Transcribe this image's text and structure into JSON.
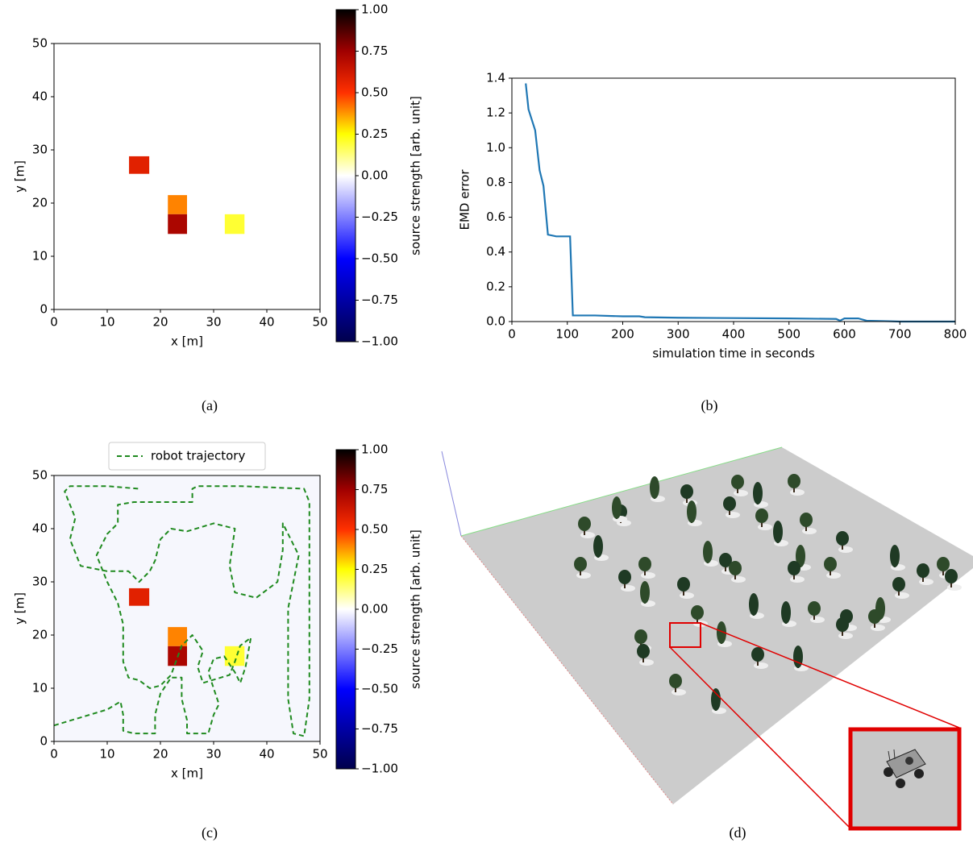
{
  "chart_data": [
    {
      "type": "heatmap",
      "caption": "(a)",
      "xlabel": "x [m]",
      "ylabel": "y [m]",
      "xlim": [
        0,
        50
      ],
      "ylim": [
        0,
        50
      ],
      "xticks": [
        0,
        10,
        20,
        30,
        40,
        50
      ],
      "yticks": [
        0,
        10,
        20,
        30,
        40,
        50
      ],
      "cells": [
        {
          "x": [
            14.1,
            17.9
          ],
          "y": [
            25.5,
            28.8
          ],
          "value": 0.58
        },
        {
          "x": [
            21.4,
            25
          ],
          "y": [
            17.9,
            21.5
          ],
          "value": 0.4
        },
        {
          "x": [
            21.4,
            25
          ],
          "y": [
            14.2,
            17.9
          ],
          "value": 0.72
        },
        {
          "x": [
            32.1,
            35.8
          ],
          "y": [
            14.2,
            17.9
          ],
          "value": 0.2
        }
      ],
      "colorbar": {
        "label": "source strength [arb. unit]",
        "lim": [
          -1,
          1
        ],
        "ticks": [
          {
            "value": 1,
            "label": "1.00"
          },
          {
            "value": 0.75,
            "label": "0.75"
          },
          {
            "value": 0.5,
            "label": "0.50"
          },
          {
            "value": 0.25,
            "label": "0.25"
          },
          {
            "value": 0,
            "label": "0.00"
          },
          {
            "value": -0.25,
            "label": "−0.25"
          },
          {
            "value": -0.5,
            "label": "−0.50"
          },
          {
            "value": -0.75,
            "label": "−0.75"
          },
          {
            "value": -1,
            "label": "−1.00"
          }
        ],
        "colormap": [
          {
            "value": -1,
            "color": "#00004c"
          },
          {
            "value": -0.5,
            "color": "#0000ff"
          },
          {
            "value": 0,
            "color": "#ffffff"
          },
          {
            "value": 0.25,
            "color": "#ffff00"
          },
          {
            "value": 0.5,
            "color": "#ff3000"
          },
          {
            "value": 0.75,
            "color": "#a00000"
          },
          {
            "value": 1,
            "color": "#000000"
          }
        ]
      }
    },
    {
      "type": "line",
      "caption": "(b)",
      "xlabel": "simulation time in seconds",
      "ylabel": "EMD error",
      "color": "#1f77b4",
      "xlim": [
        0,
        800
      ],
      "ylim": [
        0,
        1.4
      ],
      "xticks": [
        0,
        100,
        200,
        300,
        400,
        500,
        600,
        700,
        800
      ],
      "yticks": [
        {
          "value": 0,
          "label": "0.0"
        },
        {
          "value": 0.2,
          "label": "0.2"
        },
        {
          "value": 0.4,
          "label": "0.4"
        },
        {
          "value": 0.6,
          "label": "0.6"
        },
        {
          "value": 0.8,
          "label": "0.8"
        },
        {
          "value": 1,
          "label": "1.0"
        },
        {
          "value": 1.2,
          "label": "1.2"
        },
        {
          "value": 1.4,
          "label": "1.4"
        }
      ],
      "x": [
        25,
        30,
        42,
        50,
        57,
        65,
        80,
        95,
        105,
        110,
        150,
        200,
        230,
        240,
        300,
        400,
        500,
        585,
        592,
        600,
        625,
        640,
        680,
        700,
        800
      ],
      "values": [
        1.37,
        1.22,
        1.1,
        0.87,
        0.78,
        0.5,
        0.49,
        0.49,
        0.49,
        0.035,
        0.035,
        0.03,
        0.03,
        0.025,
        0.022,
        0.02,
        0.018,
        0.015,
        0.005,
        0.018,
        0.018,
        0.005,
        0.002,
        0,
        0
      ]
    },
    {
      "type": "heatmap",
      "caption": "(c)",
      "xlabel": "x [m]",
      "ylabel": "y [m]",
      "xlim": [
        0,
        50
      ],
      "ylim": [
        0,
        50
      ],
      "xticks": [
        0,
        10,
        20,
        30,
        40,
        50
      ],
      "yticks": [
        0,
        10,
        20,
        30,
        40,
        50
      ],
      "cells": [
        {
          "x": [
            14.1,
            17.9
          ],
          "y": [
            25.5,
            28.8
          ],
          "value": 0.58
        },
        {
          "x": [
            21.4,
            25
          ],
          "y": [
            17.9,
            21.5
          ],
          "value": 0.4
        },
        {
          "x": [
            21.4,
            25
          ],
          "y": [
            14.2,
            17.9
          ],
          "value": 0.72
        },
        {
          "x": [
            32.1,
            35.8
          ],
          "y": [
            14.2,
            17.9
          ],
          "value": 0.2
        }
      ],
      "series": [
        {
          "name": "robot trajectory",
          "color": "#1f8a1f",
          "x": [
            0,
            5,
            10,
            12.5,
            13,
            13,
            15,
            19,
            19,
            20,
            22,
            24,
            24,
            25,
            25,
            29,
            30,
            31,
            30,
            29,
            30,
            32,
            34,
            35,
            36,
            37,
            35,
            34,
            33,
            28,
            27,
            28,
            26,
            24,
            22,
            20,
            18,
            16,
            14,
            13,
            13,
            12,
            10,
            8,
            10,
            12,
            12,
            15,
            20,
            26,
            26,
            27,
            35,
            47,
            48,
            48,
            48,
            48,
            48,
            47,
            45,
            44,
            44,
            44,
            45,
            46,
            44,
            43,
            43,
            42,
            38,
            34,
            33,
            34,
            30,
            25,
            22,
            20,
            19,
            18,
            16,
            14,
            10,
            5,
            3,
            4,
            2,
            3,
            10,
            16
          ],
          "values": [
            3,
            4.5,
            6,
            7.5,
            5,
            2,
            1.5,
            1.5,
            5,
            9,
            12,
            12,
            8,
            4,
            1.5,
            1.5,
            5,
            7,
            10,
            13,
            15.5,
            16,
            13,
            11,
            14,
            19.5,
            18,
            15,
            12.5,
            11,
            14,
            17,
            20,
            18,
            12.5,
            10.5,
            10,
            11.5,
            12,
            15,
            22,
            26,
            30,
            35,
            39,
            41,
            44.5,
            45,
            45,
            45,
            47.5,
            48,
            48,
            47.5,
            45,
            35,
            25,
            15,
            8,
            1,
            1.5,
            8,
            15,
            25,
            30,
            35,
            39,
            41,
            36,
            30,
            27,
            28,
            33,
            40,
            41,
            39.5,
            40,
            38,
            34,
            32,
            30,
            32,
            32,
            33,
            38,
            42,
            47,
            48,
            48,
            47.5
          ]
        }
      ],
      "legend": "upper center",
      "colorbar": {
        "label": "source strength [arb. unit]",
        "lim": [
          -1,
          1
        ],
        "ticks": [
          {
            "value": 1,
            "label": "1.00"
          },
          {
            "value": 0.75,
            "label": "0.75"
          },
          {
            "value": 0.5,
            "label": "0.50"
          },
          {
            "value": 0.25,
            "label": "0.25"
          },
          {
            "value": 0,
            "label": "0.00"
          },
          {
            "value": -0.25,
            "label": "−0.25"
          },
          {
            "value": -0.5,
            "label": "−0.50"
          },
          {
            "value": -0.75,
            "label": "−0.75"
          },
          {
            "value": -1,
            "label": "−1.00"
          }
        ],
        "colormap": [
          {
            "value": -1,
            "color": "#00004c"
          },
          {
            "value": -0.5,
            "color": "#0000ff"
          },
          {
            "value": 0,
            "color": "#ffffff"
          },
          {
            "value": 0.25,
            "color": "#ffff00"
          },
          {
            "value": 0.5,
            "color": "#ff3000"
          },
          {
            "value": 0.75,
            "color": "#a00000"
          },
          {
            "value": 1,
            "color": "#000000"
          }
        ]
      }
    }
  ],
  "panel_d": {
    "caption": "(d)"
  }
}
